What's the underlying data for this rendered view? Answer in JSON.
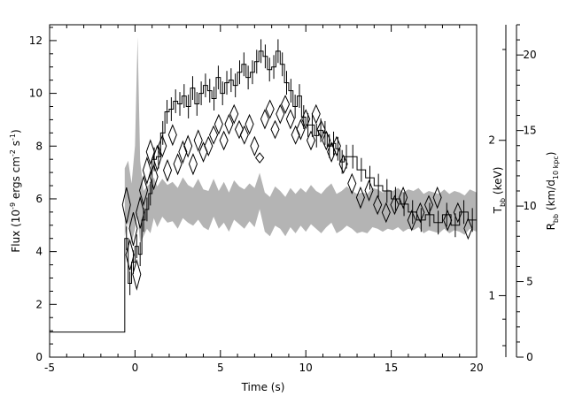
{
  "chart_data": {
    "type": "line",
    "x_axis": {
      "label": "Time (s)",
      "range": [
        -5,
        20
      ],
      "ticks": [
        -5,
        0,
        5,
        10,
        15,
        20
      ]
    },
    "y_left": {
      "label_parts": [
        "Flux (10",
        "-9",
        " ergs cm",
        "-2",
        " s",
        "-1",
        ")"
      ],
      "range": [
        0,
        12.6
      ],
      "ticks": [
        0,
        2,
        4,
        6,
        8,
        10,
        12
      ]
    },
    "y_temp": {
      "label_parts": [
        "T",
        "bb",
        " (keV)"
      ],
      "scale": "log",
      "range": [
        0.76,
        3.35
      ],
      "ticks": [
        1,
        2
      ]
    },
    "y_radius": {
      "label_parts": [
        "R",
        "bb",
        " (km/d",
        "10 kpc",
        ")"
      ],
      "range": [
        0,
        22
      ],
      "ticks": [
        0,
        5,
        10,
        15,
        20
      ]
    },
    "series": [
      {
        "role": "flux-histogram",
        "axis": "left",
        "color": "#000000",
        "x": [
          -5.0,
          -0.6,
          -0.6,
          -0.4,
          -0.2,
          0.0,
          0.2,
          0.4,
          0.6,
          0.8,
          1.0,
          1.25,
          1.5,
          1.75,
          2.0,
          2.25,
          2.5,
          2.75,
          3.0,
          3.25,
          3.5,
          3.75,
          4.0,
          4.25,
          4.5,
          4.75,
          5.0,
          5.25,
          5.5,
          5.75,
          6.0,
          6.25,
          6.5,
          6.75,
          7.0,
          7.25,
          7.5,
          7.75,
          8.0,
          8.25,
          8.5,
          8.75,
          9.0,
          9.25,
          9.5,
          9.75,
          10.0,
          10.25,
          10.5,
          10.75,
          11.0,
          11.25,
          11.5,
          11.75,
          12.0,
          12.25,
          12.5,
          13.0,
          13.5,
          14.0,
          14.5,
          15.0,
          15.5,
          16.0,
          16.5,
          17.0,
          17.5,
          18.0,
          18.5,
          19.0,
          19.5,
          20.0
        ],
        "y": [
          0.95,
          0.95,
          4.5,
          2.8,
          3.6,
          4.2,
          3.9,
          5.2,
          5.6,
          6.2,
          7.5,
          7.6,
          8.5,
          9.3,
          9.4,
          9.7,
          9.6,
          9.9,
          9.5,
          10.2,
          9.6,
          10.0,
          10.3,
          10.1,
          9.8,
          10.6,
          10.0,
          10.4,
          10.5,
          10.3,
          10.8,
          11.1,
          10.6,
          10.8,
          11.2,
          11.6,
          11.4,
          10.9,
          11.0,
          11.6,
          11.1,
          10.4,
          10.1,
          9.5,
          9.9,
          9.1,
          8.8,
          8.8,
          8.4,
          8.6,
          8.5,
          8.0,
          8.1,
          7.9,
          7.4,
          7.6,
          7.6,
          7.1,
          6.8,
          6.5,
          6.3,
          6.0,
          5.8,
          5.5,
          5.2,
          5.4,
          5.1,
          5.4,
          5.0,
          5.5,
          5.2,
          5.0
        ]
      },
      {
        "role": "temperature-diamonds",
        "axis": "temp",
        "color": "#000000",
        "x": [
          -0.5,
          -0.3,
          -0.1,
          0.1,
          0.3,
          0.5,
          0.7,
          0.9,
          1.1,
          1.3,
          1.6,
          1.9,
          2.2,
          2.5,
          2.8,
          3.1,
          3.4,
          3.7,
          4.0,
          4.3,
          4.6,
          4.9,
          5.2,
          5.5,
          5.8,
          6.1,
          6.4,
          6.7,
          7.0,
          7.3,
          7.6,
          7.9,
          8.2,
          8.5,
          8.8,
          9.1,
          9.4,
          9.7,
          10.0,
          10.3,
          10.6,
          10.9,
          11.2,
          11.5,
          11.8,
          12.2,
          12.7,
          13.2,
          13.7,
          14.2,
          14.7,
          15.2,
          15.7,
          16.2,
          16.7,
          17.2,
          17.7,
          18.3,
          18.9,
          19.5
        ],
        "y": [
          1.5,
          1.2,
          1.35,
          1.1,
          1.45,
          1.6,
          1.75,
          1.9,
          1.7,
          1.85,
          1.95,
          1.75,
          2.05,
          1.8,
          1.9,
          1.95,
          1.8,
          2.0,
          1.9,
          1.95,
          2.05,
          2.15,
          2.0,
          2.15,
          2.25,
          2.1,
          2.05,
          2.15,
          1.95,
          1.85,
          2.2,
          2.3,
          2.1,
          2.25,
          2.35,
          2.2,
          2.05,
          2.1,
          2.2,
          2.0,
          2.25,
          2.1,
          2.0,
          1.9,
          1.95,
          1.8,
          1.65,
          1.55,
          1.6,
          1.5,
          1.45,
          1.5,
          1.55,
          1.4,
          1.45,
          1.5,
          1.55,
          1.4,
          1.45,
          1.35
        ],
        "yerr": [
          0.12,
          0.08,
          0.1,
          0.07,
          0.1,
          0.1,
          0.1,
          0.1,
          0.09,
          0.1,
          0.09,
          0.08,
          0.09,
          0.08,
          0.09,
          0.09,
          0.08,
          0.09,
          0.08,
          0.08,
          0.08,
          0.09,
          0.08,
          0.09,
          0.09,
          0.08,
          0.08,
          0.09,
          0.08,
          0.04,
          0.09,
          0.09,
          0.08,
          0.09,
          0.09,
          0.09,
          0.08,
          0.09,
          0.09,
          0.08,
          0.09,
          0.08,
          0.08,
          0.08,
          0.08,
          0.07,
          0.07,
          0.07,
          0.07,
          0.06,
          0.06,
          0.06,
          0.07,
          0.06,
          0.06,
          0.06,
          0.07,
          0.06,
          0.06,
          0.06
        ]
      },
      {
        "role": "radius-band",
        "axis": "radius",
        "color": "#b4b4b4",
        "x": [
          -0.6,
          -0.4,
          -0.2,
          0.0,
          0.15,
          0.3,
          0.5,
          0.7,
          0.9,
          1.1,
          1.3,
          1.6,
          1.9,
          2.2,
          2.5,
          2.8,
          3.1,
          3.4,
          3.7,
          4.0,
          4.3,
          4.6,
          4.9,
          5.2,
          5.5,
          5.8,
          6.1,
          6.4,
          6.7,
          7.0,
          7.3,
          7.6,
          7.9,
          8.2,
          8.5,
          8.8,
          9.1,
          9.4,
          9.7,
          10.0,
          10.3,
          10.6,
          10.9,
          11.2,
          11.5,
          11.8,
          12.1,
          12.4,
          12.7,
          13.0,
          13.3,
          13.6,
          13.9,
          14.2,
          14.5,
          14.8,
          15.1,
          15.4,
          15.7,
          16.0,
          16.3,
          16.6,
          16.9,
          17.2,
          17.5,
          17.8,
          18.1,
          18.4,
          18.7,
          19.0,
          19.3,
          19.6,
          20.0
        ],
        "lower": [
          8.0,
          9.0,
          7.5,
          8.5,
          9.5,
          7.5,
          8.0,
          8.5,
          8.2,
          9.2,
          8.6,
          9.3,
          8.9,
          9.0,
          8.5,
          9.2,
          8.9,
          8.7,
          9.1,
          8.6,
          8.4,
          9.3,
          8.5,
          8.9,
          8.3,
          9.1,
          8.8,
          8.5,
          9.0,
          8.6,
          9.8,
          8.3,
          8.0,
          8.7,
          8.5,
          8.0,
          8.6,
          8.2,
          8.7,
          8.3,
          8.8,
          8.5,
          8.2,
          8.6,
          8.9,
          8.2,
          8.4,
          8.7,
          8.5,
          8.2,
          8.3,
          8.2,
          8.6,
          8.5,
          8.3,
          8.5,
          8.4,
          8.6,
          8.3,
          8.5,
          8.4,
          8.6,
          8.2,
          8.4,
          8.3,
          8.2,
          8.5,
          8.2,
          8.4,
          8.3,
          8.1,
          8.5,
          8.3
        ],
        "upper": [
          12.5,
          13.0,
          11.5,
          14.0,
          21.2,
          13.0,
          11.0,
          11.3,
          11.5,
          11.9,
          11.3,
          11.8,
          11.4,
          11.6,
          11.2,
          11.9,
          11.4,
          11.2,
          11.8,
          11.1,
          11.0,
          11.8,
          11.0,
          11.6,
          10.9,
          11.7,
          11.3,
          11.1,
          11.5,
          11.2,
          12.2,
          10.9,
          10.6,
          11.3,
          11.0,
          10.6,
          11.2,
          10.8,
          11.2,
          10.9,
          11.4,
          11.0,
          10.8,
          11.2,
          11.5,
          10.8,
          11.0,
          11.3,
          11.0,
          10.8,
          10.9,
          10.8,
          11.2,
          11.1,
          10.9,
          11.1,
          11.0,
          11.2,
          10.9,
          11.1,
          11.0,
          11.2,
          10.8,
          11.0,
          10.9,
          10.8,
          11.1,
          10.8,
          11.0,
          10.9,
          10.7,
          11.1,
          10.9
        ]
      }
    ]
  }
}
